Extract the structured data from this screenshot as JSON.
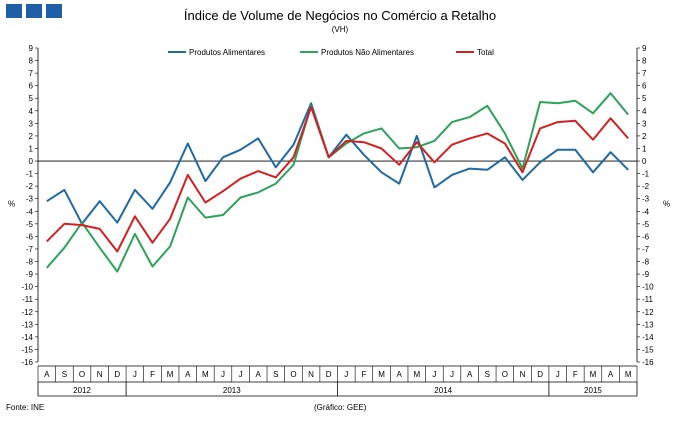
{
  "header": {
    "title": "Índice de Volume de Negócios no Comércio a Retalho",
    "subtitle": "(VH)"
  },
  "footer": {
    "source": "Fonte: INE",
    "credit": "(Gráfico: GEE)"
  },
  "chart_data": {
    "type": "line",
    "title": "Índice de Volume de Negócios no Comércio a Retalho",
    "subtitle": "(VH)",
    "ylabel": "%",
    "ylabel_right": "%",
    "ylim": [
      -16,
      9
    ],
    "yticks": [
      9,
      8,
      7,
      6,
      5,
      4,
      3,
      2,
      1,
      0,
      -1,
      -2,
      -3,
      -4,
      -5,
      -6,
      -7,
      -8,
      -9,
      -10,
      -11,
      -12,
      -13,
      -14,
      -15,
      -16
    ],
    "categories": [
      "A",
      "S",
      "O",
      "N",
      "D",
      "J",
      "F",
      "M",
      "A",
      "M",
      "J",
      "J",
      "A",
      "S",
      "O",
      "N",
      "D",
      "J",
      "F",
      "M",
      "A",
      "M",
      "J",
      "J",
      "A",
      "S",
      "O",
      "N",
      "D",
      "J",
      "F",
      "M",
      "A",
      "M"
    ],
    "years": [
      {
        "label": "2012",
        "start": 0,
        "end": 4
      },
      {
        "label": "2013",
        "start": 5,
        "end": 16
      },
      {
        "label": "2014",
        "start": 17,
        "end": 28
      },
      {
        "label": "2015",
        "start": 29,
        "end": 33
      }
    ],
    "legend_position": "top",
    "grid": false,
    "series": [
      {
        "name": "Produtos Alimentares",
        "color": "#1f6aa5",
        "values": [
          -3.2,
          -2.3,
          -5.0,
          -3.2,
          -4.9,
          -2.3,
          -3.8,
          -1.7,
          1.4,
          -1.6,
          0.3,
          0.9,
          1.8,
          -0.5,
          1.3,
          4.6,
          0.3,
          2.1,
          0.5,
          -0.9,
          -1.8,
          2.0,
          -2.1,
          -1.1,
          -0.6,
          -0.7,
          0.3,
          -1.5,
          -0.1,
          0.9,
          0.9,
          -0.9,
          0.7,
          -0.7
        ]
      },
      {
        "name": "Produtos Não Alimentares",
        "color": "#2da35a",
        "values": [
          -8.5,
          -6.9,
          -4.9,
          -6.9,
          -8.8,
          -5.8,
          -8.4,
          -6.8,
          -2.9,
          -4.5,
          -4.3,
          -2.9,
          -2.5,
          -1.8,
          -0.3,
          4.4,
          0.3,
          1.4,
          2.2,
          2.6,
          1.0,
          1.1,
          1.6,
          3.1,
          3.5,
          4.4,
          2.2,
          -0.6,
          4.7,
          4.6,
          4.8,
          3.8,
          5.4,
          3.7
        ]
      },
      {
        "name": "Total",
        "color": "#d42020",
        "values": [
          -6.4,
          -5.0,
          -5.1,
          -5.4,
          -7.2,
          -4.4,
          -6.5,
          -4.6,
          -1.1,
          -3.3,
          -2.4,
          -1.4,
          -0.8,
          -1.3,
          0.3,
          4.3,
          0.3,
          1.6,
          1.5,
          1.0,
          -0.3,
          1.5,
          -0.1,
          1.3,
          1.8,
          2.2,
          1.4,
          -0.9,
          2.6,
          3.1,
          3.2,
          1.7,
          3.4,
          1.8
        ]
      }
    ]
  }
}
